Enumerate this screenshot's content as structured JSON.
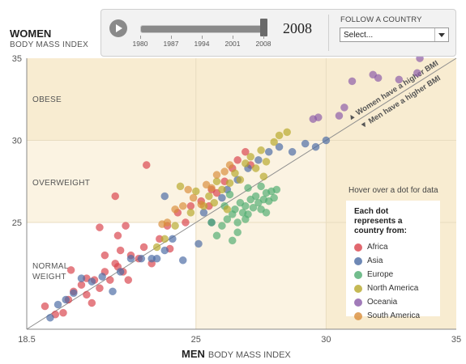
{
  "colors": {
    "Africa": "#d9424b",
    "Asia": "#4a6aa3",
    "Europe": "#4fad70",
    "North America": "#b7a82a",
    "Oceania": "#8a5aa8",
    "South America": "#d98d3a",
    "band_obese": "#f8ecd1",
    "band_overweight": "#fbf3e2",
    "band_normal": "#ffffff",
    "diag": "#8d8d8d"
  },
  "controls": {
    "year": "2008",
    "slider_ticks": [
      "1980",
      "1987",
      "1994",
      "2001",
      "2008"
    ],
    "slider_value": 1.0,
    "follow_label": "FOLLOW A COUNTRY",
    "select_value": "Select..."
  },
  "axis_titles": {
    "y_main": "WOMEN",
    "y_sub": "BODY MASS INDEX",
    "x_main": "MEN",
    "x_sub": "BODY MASS INDEX"
  },
  "bands": {
    "obese": "OBESE",
    "overweight": "OVERWEIGHT",
    "normal": "NORMAL WEIGHT"
  },
  "diagonal_text": {
    "above": "▲ Women have a higher BMI",
    "below": "▼ Men have a higher BMI"
  },
  "legend": {
    "hover_note": "Hover over a dot for data",
    "title": "Each dot represents a country from:",
    "items": [
      "Africa",
      "Asia",
      "Europe",
      "North America",
      "Oceania",
      "South America"
    ]
  },
  "chart_data": {
    "type": "scatter",
    "xlabel": "MEN BODY MASS INDEX",
    "ylabel": "WOMEN BODY MASS INDEX",
    "xlim": [
      18.5,
      35
    ],
    "ylim": [
      18.5,
      35
    ],
    "xticks": [
      "18.5",
      "25",
      "30",
      "35"
    ],
    "yticks": [
      "25",
      "30",
      "35"
    ],
    "series": [
      {
        "name": "Africa",
        "points": [
          [
            19.6,
            19.4
          ],
          [
            19.9,
            19.5
          ],
          [
            20.3,
            20.8
          ],
          [
            20.6,
            21.2
          ],
          [
            20.8,
            20.6
          ],
          [
            21.0,
            20.1
          ],
          [
            21.1,
            21.5
          ],
          [
            21.3,
            21.0
          ],
          [
            21.5,
            22.0
          ],
          [
            21.7,
            21.5
          ],
          [
            21.9,
            22.5
          ],
          [
            22.0,
            22.3
          ],
          [
            22.2,
            22.0
          ],
          [
            22.4,
            21.5
          ],
          [
            22.5,
            23.0
          ],
          [
            22.8,
            22.8
          ],
          [
            23.0,
            23.5
          ],
          [
            23.3,
            22.5
          ],
          [
            23.6,
            24.0
          ],
          [
            23.9,
            24.8
          ],
          [
            24.0,
            23.4
          ],
          [
            24.3,
            25.6
          ],
          [
            24.6,
            25.0
          ],
          [
            24.8,
            26.0
          ],
          [
            25.2,
            26.3
          ],
          [
            25.5,
            26.0
          ],
          [
            25.8,
            26.8
          ],
          [
            26.1,
            27.5
          ],
          [
            26.4,
            28.3
          ],
          [
            26.6,
            28.8
          ],
          [
            26.9,
            29.3
          ],
          [
            27.1,
            28.5
          ],
          [
            21.5,
            23.0
          ],
          [
            22.1,
            23.3
          ],
          [
            20.2,
            22.1
          ],
          [
            21.3,
            24.7
          ],
          [
            22.0,
            24.2
          ],
          [
            23.1,
            28.5
          ],
          [
            21.9,
            26.6
          ],
          [
            25.6,
            27.0
          ],
          [
            22.3,
            24.8
          ],
          [
            20.8,
            21.6
          ],
          [
            19.2,
            19.9
          ],
          [
            20.1,
            20.3
          ]
        ]
      },
      {
        "name": "Asia",
        "points": [
          [
            19.4,
            19.2
          ],
          [
            19.7,
            20.0
          ],
          [
            20.0,
            20.3
          ],
          [
            20.3,
            20.7
          ],
          [
            20.6,
            21.6
          ],
          [
            21.0,
            21.4
          ],
          [
            21.4,
            21.7
          ],
          [
            21.8,
            20.8
          ],
          [
            22.1,
            22.0
          ],
          [
            22.5,
            22.8
          ],
          [
            22.9,
            22.8
          ],
          [
            23.3,
            22.8
          ],
          [
            23.5,
            22.8
          ],
          [
            23.8,
            23.3
          ],
          [
            24.1,
            24.0
          ],
          [
            24.5,
            22.7
          ],
          [
            25.1,
            23.7
          ],
          [
            25.6,
            25.0
          ],
          [
            26.0,
            26.5
          ],
          [
            26.2,
            27.0
          ],
          [
            26.6,
            27.6
          ],
          [
            27.0,
            28.3
          ],
          [
            27.4,
            28.8
          ],
          [
            27.8,
            29.3
          ],
          [
            28.2,
            29.6
          ],
          [
            28.7,
            29.3
          ],
          [
            29.2,
            29.8
          ],
          [
            29.6,
            29.6
          ],
          [
            30.0,
            30.0
          ],
          [
            23.8,
            26.6
          ],
          [
            25.3,
            25.6
          ]
        ]
      },
      {
        "name": "Europe",
        "points": [
          [
            25.8,
            24.2
          ],
          [
            26.0,
            24.8
          ],
          [
            26.2,
            25.2
          ],
          [
            26.4,
            25.5
          ],
          [
            26.5,
            25.8
          ],
          [
            26.6,
            25.0
          ],
          [
            26.7,
            26.2
          ],
          [
            26.8,
            25.6
          ],
          [
            26.9,
            26.0
          ],
          [
            27.0,
            25.5
          ],
          [
            27.1,
            26.4
          ],
          [
            27.2,
            25.9
          ],
          [
            27.3,
            26.6
          ],
          [
            27.4,
            26.2
          ],
          [
            27.5,
            25.8
          ],
          [
            27.6,
            26.4
          ],
          [
            27.7,
            26.8
          ],
          [
            27.8,
            26.3
          ],
          [
            27.9,
            26.9
          ],
          [
            28.0,
            26.5
          ],
          [
            26.3,
            26.7
          ],
          [
            26.6,
            24.4
          ],
          [
            27.0,
            27.1
          ],
          [
            27.5,
            27.2
          ],
          [
            26.1,
            26.0
          ],
          [
            26.9,
            25.2
          ],
          [
            27.7,
            25.6
          ],
          [
            25.6,
            25.0
          ],
          [
            28.1,
            27.0
          ],
          [
            26.4,
            23.9
          ]
        ]
      },
      {
        "name": "North America",
        "points": [
          [
            24.2,
            24.8
          ],
          [
            24.8,
            25.6
          ],
          [
            25.3,
            26.0
          ],
          [
            25.5,
            26.6
          ],
          [
            25.7,
            26.2
          ],
          [
            26.0,
            27.0
          ],
          [
            26.3,
            27.4
          ],
          [
            26.5,
            28.0
          ],
          [
            26.7,
            27.6
          ],
          [
            26.9,
            28.6
          ],
          [
            27.1,
            29.0
          ],
          [
            27.3,
            28.3
          ],
          [
            27.5,
            29.4
          ],
          [
            27.7,
            28.7
          ],
          [
            28.0,
            29.9
          ],
          [
            28.2,
            30.3
          ],
          [
            28.5,
            30.5
          ],
          [
            23.8,
            24.0
          ],
          [
            24.4,
            27.2
          ],
          [
            25.0,
            26.9
          ],
          [
            25.8,
            27.5
          ],
          [
            26.2,
            25.8
          ],
          [
            23.5,
            23.5
          ],
          [
            27.6,
            27.8
          ]
        ]
      },
      {
        "name": "Oceania",
        "points": [
          [
            29.5,
            31.3
          ],
          [
            30.7,
            32.0
          ],
          [
            31.0,
            33.6
          ],
          [
            32.0,
            33.8
          ],
          [
            32.8,
            33.7
          ],
          [
            33.5,
            34.1
          ],
          [
            30.5,
            31.5
          ],
          [
            33.6,
            35.0
          ],
          [
            29.7,
            31.4
          ],
          [
            31.8,
            34.0
          ]
        ]
      },
      {
        "name": "South America",
        "points": [
          [
            23.7,
            24.9
          ],
          [
            24.2,
            25.8
          ],
          [
            24.5,
            26.0
          ],
          [
            24.9,
            26.5
          ],
          [
            25.4,
            27.3
          ],
          [
            25.6,
            27.1
          ],
          [
            25.8,
            27.9
          ],
          [
            26.1,
            28.1
          ],
          [
            26.3,
            28.5
          ],
          [
            24.7,
            27.0
          ],
          [
            25.2,
            26.1
          ],
          [
            23.9,
            25.0
          ]
        ]
      }
    ]
  }
}
